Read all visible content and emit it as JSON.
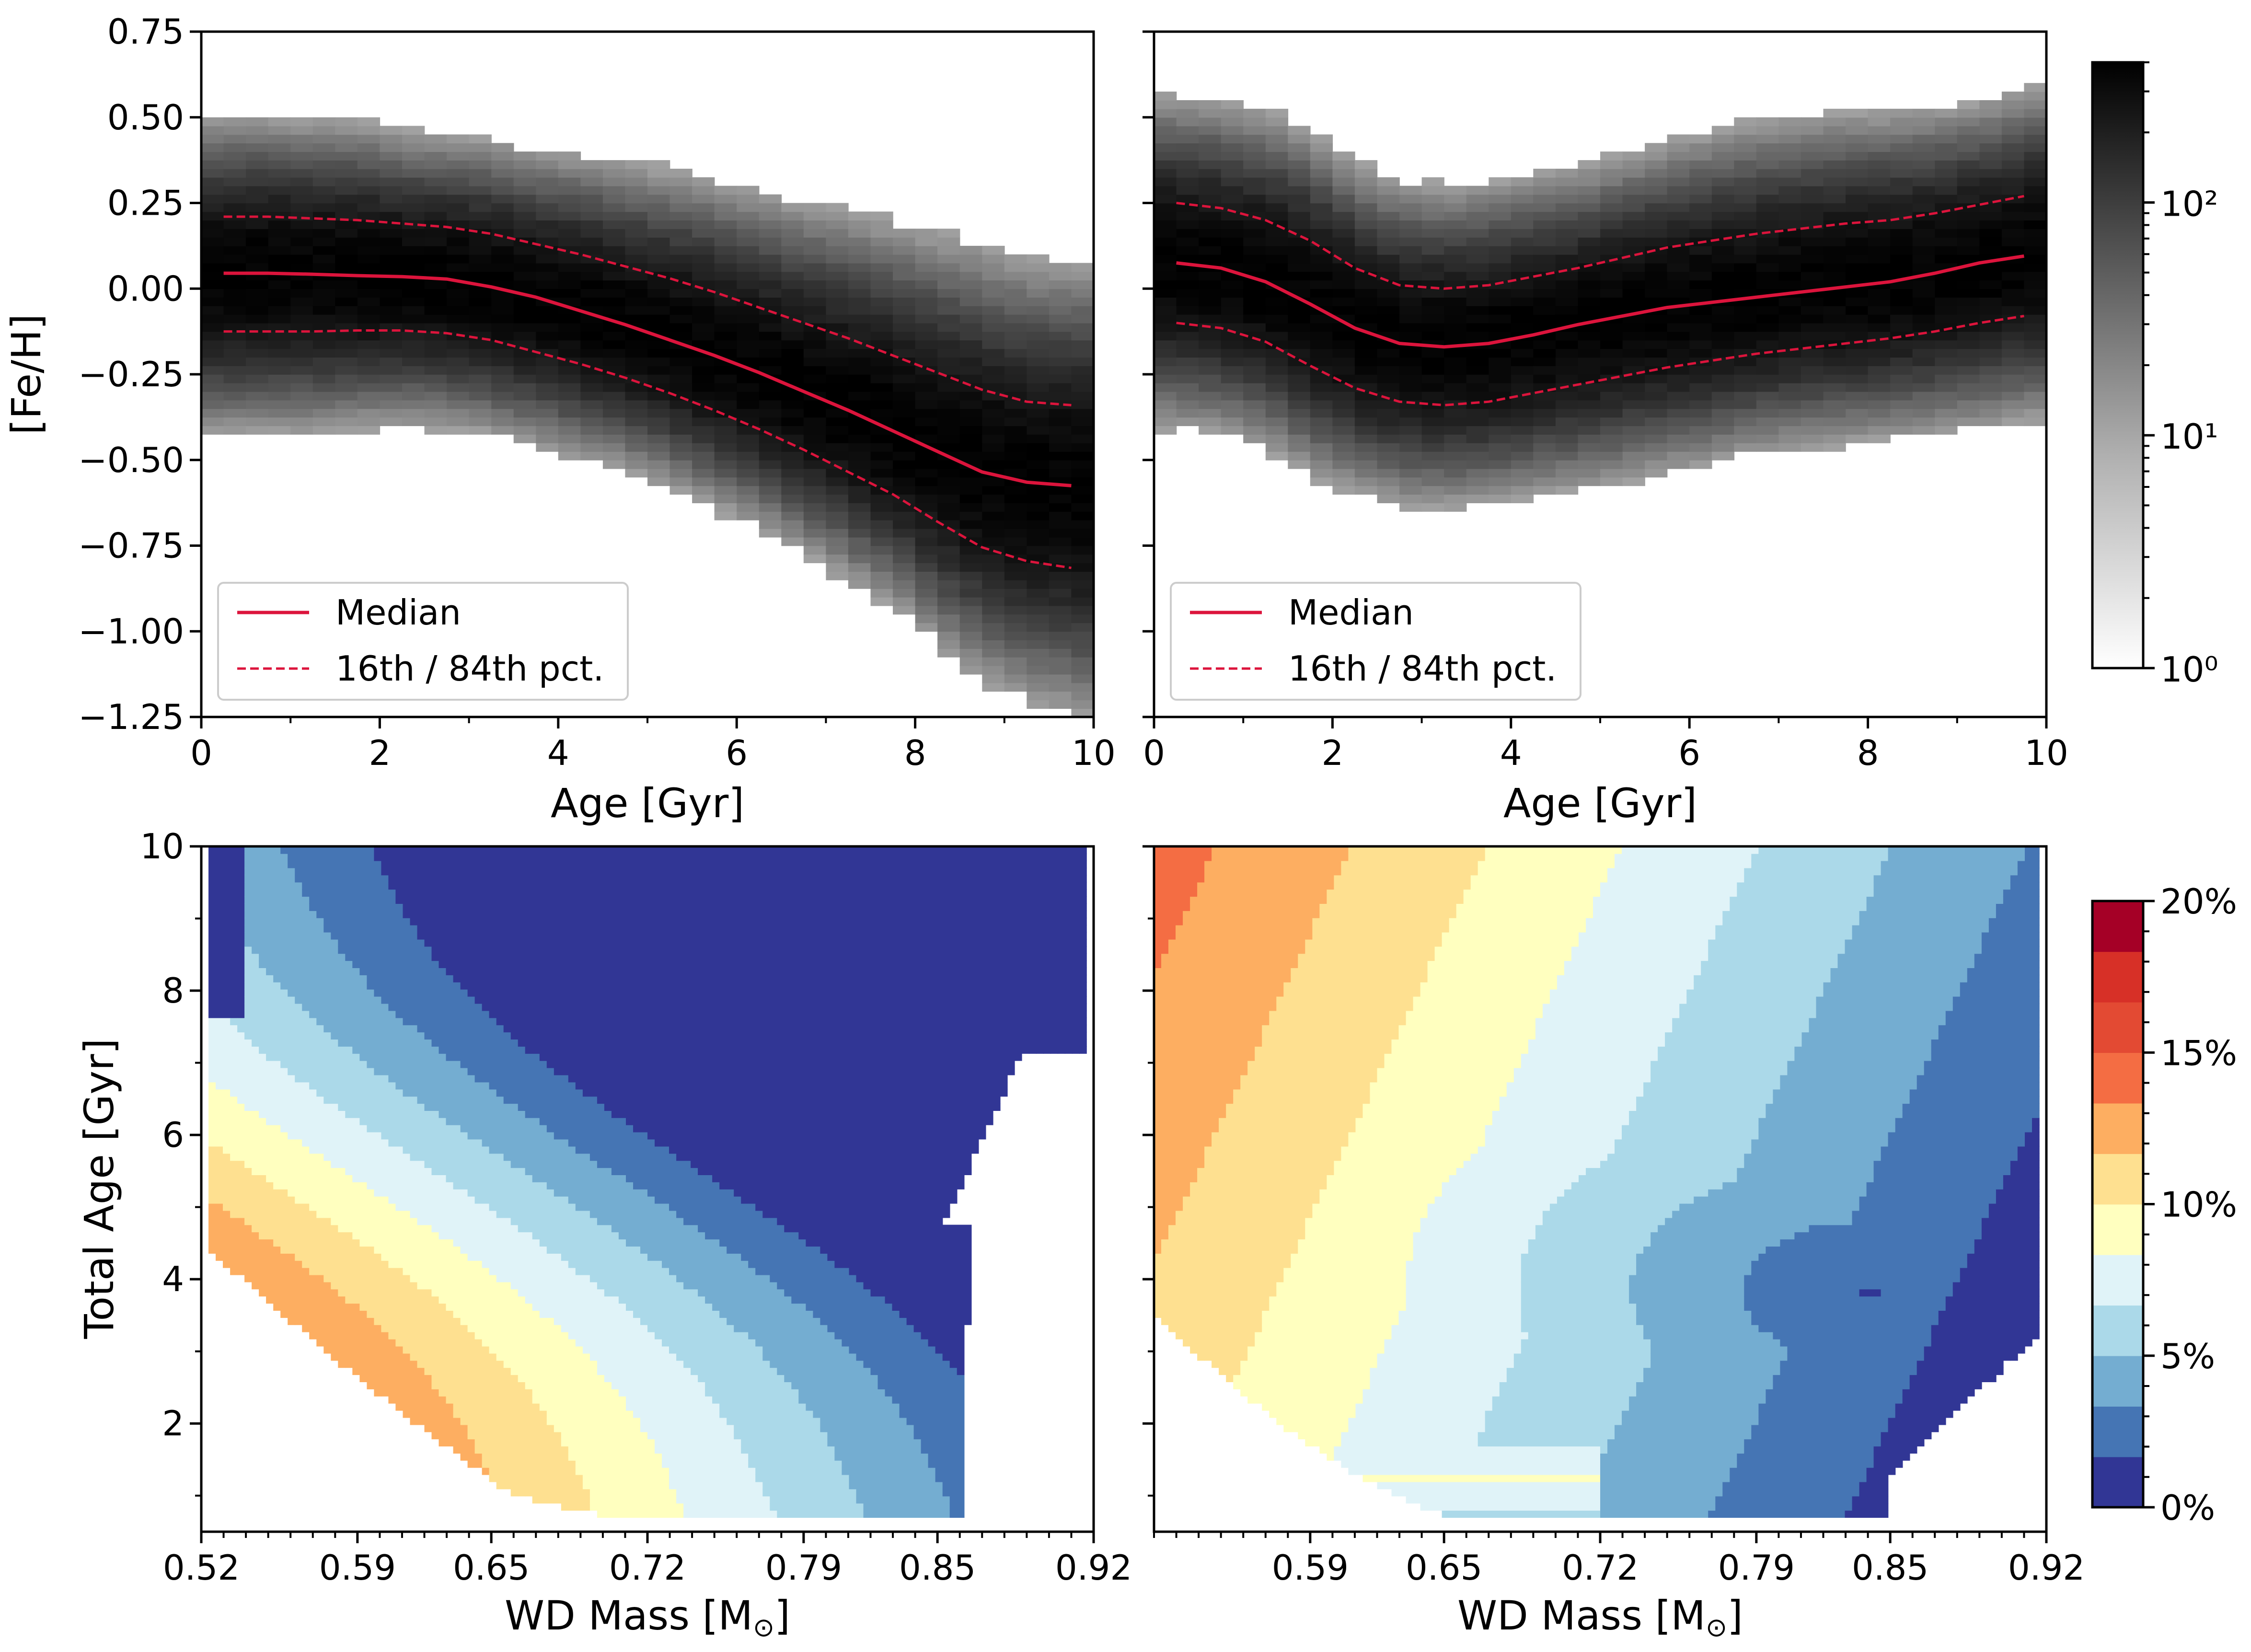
{
  "chart_data": [
    {
      "type": "heatmap",
      "panel": "top-left",
      "xlabel": "Age [Gyr]",
      "ylabel": "[Fe/H]",
      "xlim": [
        0,
        10
      ],
      "ylim": [
        -1.25,
        0.75
      ],
      "xticks": [
        "0",
        "2",
        "4",
        "6",
        "8",
        "10"
      ],
      "yticks": [
        "0.75",
        "0.50",
        "0.25",
        "0.00",
        "−0.25",
        "−0.50",
        "−0.75",
        "−1.00",
        "−1.25"
      ],
      "legend": {
        "position": "lower-left",
        "entries": [
          "Median",
          "16th / 84th pct."
        ]
      },
      "series": [
        {
          "name": "Median",
          "style": "solid",
          "color": "#dc143c",
          "x": [
            0.25,
            0.75,
            1.25,
            1.75,
            2.25,
            2.75,
            3.25,
            3.75,
            4.25,
            4.75,
            5.25,
            5.75,
            6.25,
            6.75,
            7.25,
            7.75,
            8.25,
            8.75,
            9.25,
            9.75
          ],
          "y": [
            0.045,
            0.045,
            0.042,
            0.038,
            0.035,
            0.028,
            0.005,
            -0.025,
            -0.065,
            -0.105,
            -0.15,
            -0.195,
            -0.245,
            -0.3,
            -0.355,
            -0.415,
            -0.475,
            -0.535,
            -0.565,
            -0.575
          ]
        },
        {
          "name": "16th pct.",
          "style": "dashed",
          "color": "#dc143c",
          "x": [
            0.25,
            0.75,
            1.25,
            1.75,
            2.25,
            2.75,
            3.25,
            3.75,
            4.25,
            4.75,
            5.25,
            5.75,
            6.25,
            6.75,
            7.25,
            7.75,
            8.25,
            8.75,
            9.25,
            9.75
          ],
          "y": [
            -0.125,
            -0.125,
            -0.125,
            -0.122,
            -0.122,
            -0.13,
            -0.15,
            -0.185,
            -0.22,
            -0.26,
            -0.305,
            -0.355,
            -0.41,
            -0.47,
            -0.535,
            -0.6,
            -0.68,
            -0.755,
            -0.795,
            -0.815
          ]
        },
        {
          "name": "84th pct.",
          "style": "dashed",
          "color": "#dc143c",
          "x": [
            0.25,
            0.75,
            1.25,
            1.75,
            2.25,
            2.75,
            3.25,
            3.75,
            4.25,
            4.75,
            5.25,
            5.75,
            6.25,
            6.75,
            7.25,
            7.75,
            8.25,
            8.75,
            9.25,
            9.75
          ],
          "y": [
            0.21,
            0.21,
            0.205,
            0.2,
            0.19,
            0.18,
            0.16,
            0.13,
            0.1,
            0.065,
            0.03,
            -0.01,
            -0.055,
            -0.1,
            -0.145,
            -0.195,
            -0.245,
            -0.295,
            -0.33,
            -0.34
          ]
        }
      ]
    },
    {
      "type": "heatmap",
      "panel": "top-right",
      "xlabel": "Age [Gyr]",
      "ylabel": "",
      "xlim": [
        0,
        10
      ],
      "ylim": [
        -1.25,
        0.75
      ],
      "xticks": [
        "0",
        "2",
        "4",
        "6",
        "8",
        "10"
      ],
      "legend": {
        "position": "lower-left",
        "entries": [
          "Median",
          "16th / 84th pct."
        ]
      },
      "series": [
        {
          "name": "Median",
          "style": "solid",
          "color": "#dc143c",
          "x": [
            0.25,
            0.75,
            1.25,
            1.75,
            2.25,
            2.75,
            3.25,
            3.75,
            4.25,
            4.75,
            5.25,
            5.75,
            6.25,
            6.75,
            7.25,
            7.75,
            8.25,
            8.75,
            9.25,
            9.75
          ],
          "y": [
            0.075,
            0.06,
            0.02,
            -0.045,
            -0.115,
            -0.16,
            -0.17,
            -0.16,
            -0.135,
            -0.105,
            -0.08,
            -0.055,
            -0.04,
            -0.025,
            -0.01,
            0.005,
            0.02,
            0.045,
            0.075,
            0.095
          ]
        },
        {
          "name": "16th pct.",
          "style": "dashed",
          "color": "#dc143c",
          "x": [
            0.25,
            0.75,
            1.25,
            1.75,
            2.25,
            2.75,
            3.25,
            3.75,
            4.25,
            4.75,
            5.25,
            5.75,
            6.25,
            6.75,
            7.25,
            7.75,
            8.25,
            8.75,
            9.25,
            9.75
          ],
          "y": [
            -0.1,
            -0.115,
            -0.155,
            -0.225,
            -0.29,
            -0.33,
            -0.34,
            -0.33,
            -0.305,
            -0.28,
            -0.255,
            -0.23,
            -0.21,
            -0.19,
            -0.175,
            -0.16,
            -0.145,
            -0.125,
            -0.1,
            -0.08
          ]
        },
        {
          "name": "84th pct.",
          "style": "dashed",
          "color": "#dc143c",
          "x": [
            0.25,
            0.75,
            1.25,
            1.75,
            2.25,
            2.75,
            3.25,
            3.75,
            4.25,
            4.75,
            5.25,
            5.75,
            6.25,
            6.75,
            7.25,
            7.75,
            8.25,
            8.75,
            9.25,
            9.75
          ],
          "y": [
            0.25,
            0.235,
            0.2,
            0.14,
            0.06,
            0.01,
            0.0,
            0.01,
            0.035,
            0.06,
            0.09,
            0.12,
            0.14,
            0.16,
            0.175,
            0.19,
            0.2,
            0.22,
            0.245,
            0.27
          ]
        }
      ]
    },
    {
      "type": "heatmap",
      "panel": "top-colorbar",
      "scale": "log",
      "range": [
        1,
        400
      ],
      "tick_labels": [
        "10⁰",
        "10¹",
        "10²"
      ],
      "tick_values": [
        1,
        10,
        100
      ],
      "colormap": [
        "#ffffff",
        "#000000"
      ]
    },
    {
      "type": "heatmap",
      "panel": "bottom-left",
      "xlabel": "WD Mass [M",
      "xlabel_sub": "⊙",
      "xlabel_end": "]",
      "ylabel": "Total Age [Gyr]",
      "xlim": [
        0.52,
        0.92
      ],
      "ylim": [
        0.5,
        10
      ],
      "xticks": [
        "0.52",
        "0.59",
        "0.65",
        "0.72",
        "0.79",
        "0.85",
        "0.92"
      ],
      "yticks": [
        "2",
        "4",
        "6",
        "8",
        "10"
      ]
    },
    {
      "type": "heatmap",
      "panel": "bottom-right",
      "xlabel": "WD Mass [M",
      "xlabel_sub": "⊙",
      "xlabel_end": "]",
      "xlim": [
        0.52,
        0.92
      ],
      "ylim": [
        0.5,
        10
      ],
      "xticks": [
        "0.59",
        "0.65",
        "0.72",
        "0.79",
        "0.85",
        "0.92"
      ]
    },
    {
      "type": "heatmap",
      "panel": "bottom-colorbar",
      "range": [
        0,
        20
      ],
      "tick_labels": [
        "0%",
        "5%",
        "10%",
        "15%",
        "20%"
      ],
      "tick_values": [
        0,
        5,
        10,
        15,
        20
      ],
      "levels": [
        "#313695",
        "#4575b4",
        "#74add1",
        "#abd9e9",
        "#e0f3f8",
        "#ffffbf",
        "#fee090",
        "#fdae61",
        "#f46d43",
        "#e34a33",
        "#d73027",
        "#a50026"
      ]
    }
  ]
}
